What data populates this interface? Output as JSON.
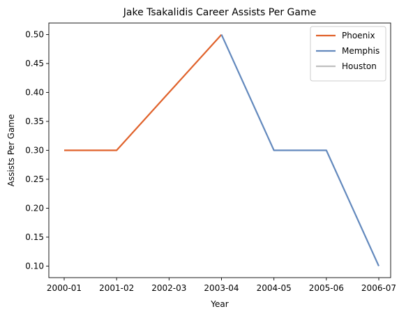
{
  "chart_data": {
    "type": "line",
    "title": "Jake Tsakalidis Career Assists Per Game",
    "xlabel": "Year",
    "ylabel": "Assists Per Game",
    "categories": [
      "2000-01",
      "2001-02",
      "2002-03",
      "2003-04",
      "2004-05",
      "2005-06",
      "2006-07"
    ],
    "ylim": [
      0.08,
      0.52
    ],
    "yticks": [
      "0.10",
      "0.15",
      "0.20",
      "0.25",
      "0.30",
      "0.35",
      "0.40",
      "0.45",
      "0.50"
    ],
    "grid": false,
    "legend_position": "top-right",
    "series": [
      {
        "name": "Phoenix",
        "color": "#e0622b",
        "x": [
          "2000-01",
          "2001-02",
          "2002-03",
          "2003-04"
        ],
        "values": [
          0.3,
          0.3,
          0.4,
          0.5
        ]
      },
      {
        "name": "Memphis",
        "color": "#6389bd",
        "x": [
          "2003-04",
          "2004-05",
          "2005-06",
          "2006-07"
        ],
        "values": [
          0.5,
          0.3,
          0.3,
          0.1
        ]
      },
      {
        "name": "Houston",
        "color": "#bfbfbf",
        "x": [],
        "values": []
      }
    ]
  }
}
